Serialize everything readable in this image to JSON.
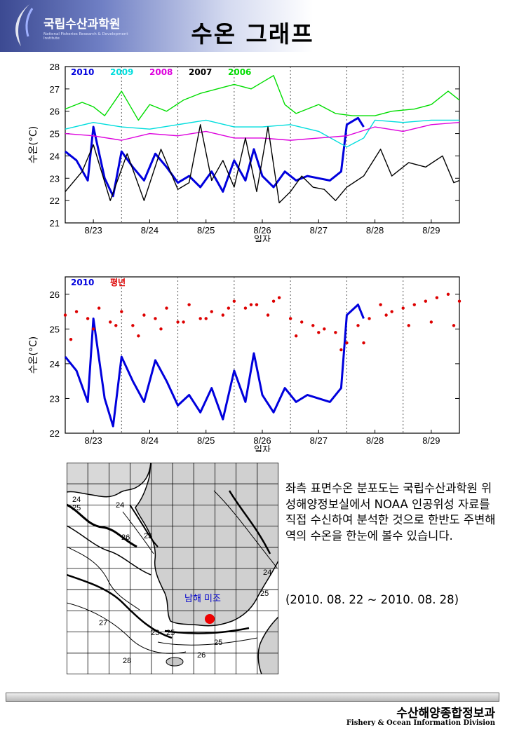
{
  "header": {
    "institute_name": "국립수산과학원",
    "institute_subtitle": "National Fisheries Research & Development Institute",
    "title": "수온 그래프"
  },
  "chart_data": [
    {
      "type": "line",
      "ylabel": "수온(°C)",
      "xlabel": "일자",
      "ylim": [
        21,
        28
      ],
      "yticks": [
        "21",
        "22",
        "23",
        "24",
        "25",
        "26",
        "27",
        "28"
      ],
      "xlim": [
        22.5,
        29.5
      ],
      "xticks": [
        {
          "x": 23,
          "label": "8/23"
        },
        {
          "x": 24,
          "label": "8/24"
        },
        {
          "x": 25,
          "label": "8/25"
        },
        {
          "x": 26,
          "label": "8/26"
        },
        {
          "x": 27,
          "label": "8/27"
        },
        {
          "x": 28,
          "label": "8/28"
        },
        {
          "x": 29,
          "label": "8/29"
        }
      ],
      "series": [
        {
          "name": "2010",
          "color": "#0000dd",
          "x": [
            22.5,
            22.7,
            22.9,
            23.0,
            23.2,
            23.35,
            23.5,
            23.7,
            23.9,
            24.1,
            24.3,
            24.5,
            24.7,
            24.9,
            25.1,
            25.3,
            25.5,
            25.7,
            25.85,
            26.0,
            26.2,
            26.4,
            26.6,
            26.8,
            27.0,
            27.2,
            27.4,
            27.5,
            27.7,
            27.8
          ],
          "y": [
            24.2,
            23.8,
            22.9,
            25.3,
            23.0,
            22.2,
            24.2,
            23.5,
            22.9,
            24.1,
            23.5,
            22.8,
            23.1,
            22.6,
            23.3,
            22.4,
            23.8,
            22.9,
            24.3,
            23.1,
            22.6,
            23.3,
            22.9,
            23.1,
            23.0,
            22.9,
            23.3,
            25.4,
            25.7,
            25.3
          ]
        },
        {
          "name": "2009",
          "color": "#00dddd",
          "x": [
            22.5,
            23.0,
            23.5,
            24.0,
            24.5,
            25.0,
            25.5,
            26.0,
            26.5,
            27.0,
            27.5,
            27.8,
            28.0,
            28.5,
            29.0,
            29.5
          ],
          "y": [
            25.2,
            25.5,
            25.3,
            25.2,
            25.4,
            25.6,
            25.3,
            25.3,
            25.4,
            25.1,
            24.4,
            24.8,
            25.6,
            25.5,
            25.6,
            25.6
          ]
        },
        {
          "name": "2008",
          "color": "#dd00dd",
          "x": [
            22.5,
            23.0,
            23.5,
            24.0,
            24.5,
            25.0,
            25.5,
            26.0,
            26.5,
            27.0,
            27.5,
            28.0,
            28.5,
            29.0,
            29.5
          ],
          "y": [
            25.0,
            24.9,
            24.7,
            25.0,
            24.9,
            25.1,
            24.8,
            24.8,
            24.7,
            24.8,
            24.9,
            25.3,
            25.1,
            25.4,
            25.5
          ]
        },
        {
          "name": "2007",
          "color": "#000000",
          "x": [
            22.5,
            22.8,
            23.0,
            23.3,
            23.6,
            23.9,
            24.2,
            24.5,
            24.7,
            24.9,
            25.1,
            25.3,
            25.5,
            25.7,
            25.9,
            26.1,
            26.3,
            26.5,
            26.7,
            26.9,
            27.1,
            27.3,
            27.5,
            27.8,
            28.1,
            28.3,
            28.6,
            28.9,
            29.2,
            29.4,
            29.5
          ],
          "y": [
            22.4,
            23.3,
            24.5,
            22.0,
            24.1,
            22.0,
            24.3,
            22.5,
            22.8,
            25.4,
            22.9,
            23.8,
            22.6,
            24.8,
            22.4,
            25.3,
            21.9,
            22.4,
            23.1,
            22.6,
            22.5,
            22.0,
            22.6,
            23.1,
            24.3,
            23.1,
            23.7,
            23.5,
            24.0,
            22.8,
            22.9
          ]
        },
        {
          "name": "2006",
          "color": "#00dd00",
          "x": [
            22.5,
            22.8,
            23.0,
            23.2,
            23.5,
            23.8,
            24.0,
            24.3,
            24.6,
            24.9,
            25.2,
            25.5,
            25.8,
            26.0,
            26.2,
            26.4,
            26.6,
            26.8,
            27.0,
            27.3,
            27.6,
            28.0,
            28.3,
            28.7,
            29.0,
            29.3,
            29.5
          ],
          "y": [
            26.1,
            26.4,
            26.2,
            25.8,
            26.9,
            25.6,
            26.3,
            26.0,
            26.5,
            26.8,
            27.0,
            27.2,
            27.0,
            27.3,
            27.6,
            26.3,
            25.9,
            26.1,
            26.3,
            25.9,
            25.8,
            25.8,
            26.0,
            26.1,
            26.3,
            26.9,
            26.5
          ]
        }
      ]
    },
    {
      "type": "scatter",
      "ylabel": "수온(°C)",
      "xlabel": "일자",
      "ylim": [
        22,
        26.5
      ],
      "yticks": [
        "22",
        "23",
        "24",
        "25",
        "26"
      ],
      "xlim": [
        22.5,
        29.5
      ],
      "xticks": [
        {
          "x": 23,
          "label": "8/23"
        },
        {
          "x": 24,
          "label": "8/24"
        },
        {
          "x": 25,
          "label": "8/25"
        },
        {
          "x": 26,
          "label": "8/26"
        },
        {
          "x": 27,
          "label": "8/27"
        },
        {
          "x": 28,
          "label": "8/28"
        },
        {
          "x": 29,
          "label": "8/29"
        }
      ],
      "series": [
        {
          "name": "2010",
          "color": "#0000dd",
          "style": "line",
          "x": [
            22.5,
            22.7,
            22.9,
            23.0,
            23.2,
            23.35,
            23.5,
            23.7,
            23.9,
            24.1,
            24.3,
            24.5,
            24.7,
            24.9,
            25.1,
            25.3,
            25.5,
            25.7,
            25.85,
            26.0,
            26.2,
            26.4,
            26.6,
            26.8,
            27.0,
            27.2,
            27.4,
            27.5,
            27.7,
            27.8
          ],
          "y": [
            24.2,
            23.8,
            22.9,
            25.3,
            23.0,
            22.2,
            24.2,
            23.5,
            22.9,
            24.1,
            23.5,
            22.8,
            23.1,
            22.6,
            23.3,
            22.4,
            23.8,
            22.9,
            24.3,
            23.1,
            22.6,
            23.3,
            22.9,
            23.1,
            23.0,
            22.9,
            23.3,
            25.4,
            25.7,
            25.3
          ]
        },
        {
          "name": "평년",
          "color": "#dd0000",
          "style": "dots",
          "x": [
            22.5,
            22.7,
            22.9,
            23.1,
            23.3,
            23.5,
            23.7,
            23.9,
            24.1,
            24.3,
            24.5,
            24.7,
            24.9,
            25.1,
            25.3,
            25.5,
            25.7,
            25.9,
            26.1,
            26.3,
            26.5,
            26.7,
            26.9,
            27.1,
            27.3,
            27.5,
            27.7,
            27.9,
            28.1,
            28.3,
            28.5,
            28.7,
            28.9,
            29.1,
            29.3,
            29.5,
            22.6,
            23.0,
            23.4,
            23.8,
            24.2,
            24.6,
            25.0,
            25.4,
            25.8,
            26.2,
            26.6,
            27.0,
            27.4,
            27.8,
            28.2,
            28.6,
            29.0,
            29.4
          ],
          "y": [
            25.4,
            25.5,
            25.3,
            25.6,
            25.2,
            25.5,
            25.1,
            25.4,
            25.3,
            25.6,
            25.2,
            25.7,
            25.3,
            25.5,
            25.4,
            25.8,
            25.6,
            25.7,
            25.4,
            25.9,
            25.3,
            25.2,
            25.1,
            25.0,
            24.9,
            24.6,
            25.1,
            25.3,
            25.7,
            25.5,
            25.6,
            25.7,
            25.8,
            25.9,
            26.0,
            25.8,
            24.7,
            25.0,
            25.1,
            24.8,
            25.0,
            25.2,
            25.3,
            25.6,
            25.7,
            25.8,
            24.8,
            24.9,
            24.4,
            24.6,
            25.4,
            25.1,
            25.2,
            25.1
          ]
        }
      ]
    }
  ],
  "map": {
    "location_label": "남해 미조",
    "contour_labels": [
      "24",
      "25",
      "24",
      "26",
      "23",
      "24",
      "25",
      "27",
      "23",
      "25",
      "28",
      "26",
      "25"
    ]
  },
  "description": "좌측 표면수온 분포도는 국립수산과학원 위성해양정보실에서 NOAA 인공위성 자료를 직접 수신하여 분석한 것으로  한반도 주변해역의 수온을 한눈에 볼수 있습니다.",
  "period": "(2010. 08. 22 ~ 2010. 08. 28)",
  "footer": {
    "division_kr": "수산해양종합정보과",
    "division_en": "Fishery & Ocean Information Division"
  }
}
